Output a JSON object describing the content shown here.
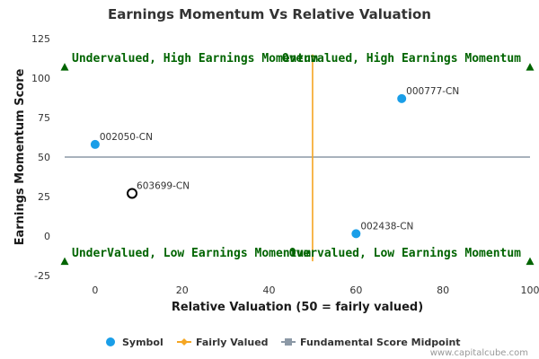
{
  "chart_data": {
    "type": "scatter",
    "title": "Earnings Momentum Vs Relative Valuation",
    "xlabel": "Relative Valuation (50 = fairly valued)",
    "ylabel": "Earnings Momentum Score",
    "xlim": [
      -7,
      100
    ],
    "ylim": [
      -25,
      125
    ],
    "xticks": [
      "0",
      "20",
      "40",
      "60",
      "80",
      "100"
    ],
    "yticks": [
      "125",
      "100",
      "75",
      "50",
      "25",
      "0",
      "-25"
    ],
    "grid": false,
    "points": [
      {
        "label": "000777-CN",
        "x": 70.5,
        "y": 87,
        "color": "#1a9ee8",
        "filled": true
      },
      {
        "label": "002050-CN",
        "x": 0,
        "y": 58,
        "color": "#1a9ee8",
        "filled": true
      },
      {
        "label": "603699-CN",
        "x": 8.5,
        "y": 27,
        "color": "#000000",
        "filled": false
      },
      {
        "label": "002438-CN",
        "x": 60,
        "y": 1.5,
        "color": "#1a9ee8",
        "filled": true
      }
    ],
    "fairly_valued_x": 50,
    "fundamental_midpoint_y": 50,
    "quadrant_labels": {
      "top_left": "Undervalued, High Earnings Momentum",
      "top_right": "Overvalued, High Earnings Momentum",
      "bottom_left": "UnderValued, Low Earnings Momentum",
      "bottom_right": "Overvalued, Low Earnings Momentum"
    },
    "legend": {
      "placement": "bottom-center",
      "items": [
        {
          "name": "Symbol",
          "color": "#1a9ee8",
          "kind": "dot"
        },
        {
          "name": "Fairly Valued",
          "color": "#f5a623",
          "kind": "line-diamond"
        },
        {
          "name": "Fundamental Score Midpoint",
          "color": "#8c99a6",
          "kind": "line-square"
        }
      ]
    },
    "colors": {
      "quadrant_text": "#006400",
      "triangle": "#006400",
      "fair_line": "#f5a623",
      "mid_line": "#8c99a6"
    }
  },
  "credit": "www.capitalcube.com"
}
